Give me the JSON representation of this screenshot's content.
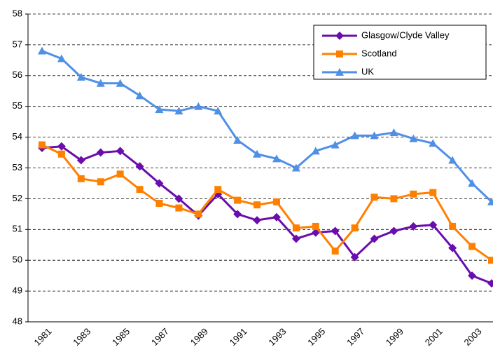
{
  "chart_data": {
    "type": "line",
    "categories": [
      "1981",
      null,
      "1983",
      null,
      "1985",
      null,
      "1987",
      null,
      "1989",
      null,
      "1991",
      null,
      "1993",
      null,
      "1995",
      null,
      "1997",
      null,
      "1999",
      null,
      "2001",
      null,
      "2003",
      null
    ],
    "series": [
      {
        "name": "Glasgow/Clyde Valley",
        "color": "#6a0dad",
        "marker": "diamond",
        "values": [
          53.65,
          53.7,
          53.25,
          53.5,
          53.55,
          53.05,
          52.5,
          52.0,
          51.45,
          52.15,
          51.5,
          51.3,
          51.4,
          50.7,
          50.9,
          50.95,
          50.1,
          50.7,
          50.95,
          51.1,
          51.15,
          50.4,
          49.5,
          49.25
        ]
      },
      {
        "name": "Scotland",
        "color": "#ff8000",
        "marker": "square",
        "values": [
          53.75,
          53.45,
          52.65,
          52.55,
          52.8,
          52.3,
          51.85,
          51.7,
          51.5,
          52.3,
          51.95,
          51.8,
          51.9,
          51.05,
          51.1,
          50.3,
          51.05,
          52.05,
          52.0,
          52.15,
          52.2,
          51.1,
          50.45,
          50.0
        ]
      },
      {
        "name": "UK",
        "color": "#4f8fe6",
        "marker": "triangle",
        "values": [
          56.8,
          56.55,
          55.95,
          55.75,
          55.75,
          55.35,
          54.9,
          54.85,
          55.0,
          54.85,
          53.9,
          53.45,
          53.3,
          53.0,
          53.55,
          53.75,
          54.05,
          54.05,
          54.15,
          53.95,
          53.8,
          53.25,
          52.5,
          51.9
        ]
      }
    ],
    "ylim": [
      48,
      58
    ],
    "yticks": [
      48,
      49,
      50,
      51,
      52,
      53,
      54,
      55,
      56,
      57,
      58
    ],
    "grid": true,
    "legend": "top-right"
  }
}
